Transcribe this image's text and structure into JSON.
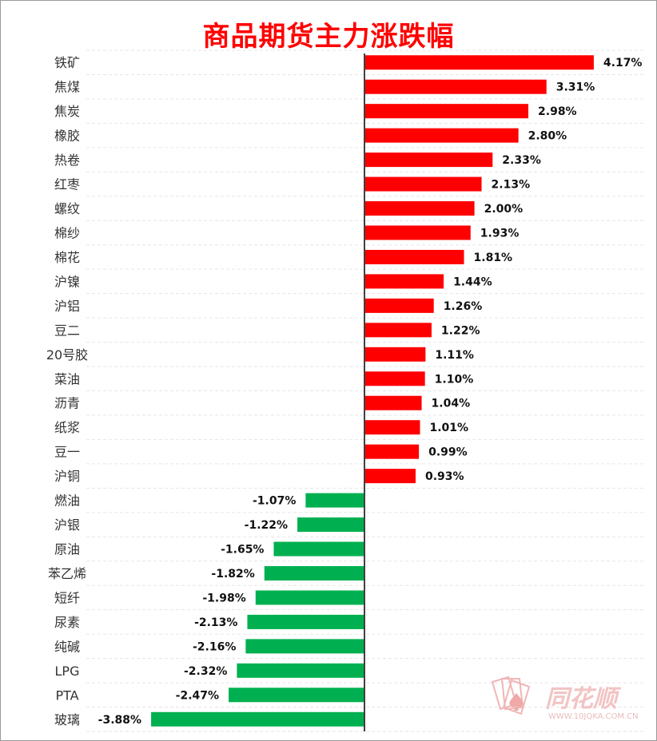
{
  "colors": {
    "positive": "#ff0000",
    "negative": "#00b050",
    "title": "#ff0000",
    "axis": "#404040",
    "grid": "#e6e6e6",
    "watermark": "#f2c4c4"
  },
  "watermark": {
    "brand": "同花顺",
    "url": "WWW.10JQKA.COM.CN",
    "logo_icon": "playing-cards-spade-icon"
  },
  "chart_data": {
    "type": "bar",
    "orientation": "horizontal",
    "title": "商品期货主力涨跌幅",
    "xlim": [
      -4.5,
      5.0
    ],
    "grid": "horizontal",
    "legend": "none",
    "categories": [
      "铁矿",
      "焦煤",
      "焦炭",
      "橡胶",
      "热卷",
      "红枣",
      "螺纹",
      "棉纱",
      "棉花",
      "沪镍",
      "沪铝",
      "豆二",
      "20号胶",
      "菜油",
      "沥青",
      "纸浆",
      "豆一",
      "沪铜",
      "燃油",
      "沪银",
      "原油",
      "苯乙烯",
      "短纤",
      "尿素",
      "纯碱",
      "LPG",
      "PTA",
      "玻璃"
    ],
    "values": [
      4.17,
      3.31,
      2.98,
      2.8,
      2.33,
      2.13,
      2.0,
      1.93,
      1.81,
      1.44,
      1.26,
      1.22,
      1.11,
      1.1,
      1.04,
      1.01,
      0.99,
      0.93,
      -1.07,
      -1.22,
      -1.65,
      -1.82,
      -1.98,
      -2.13,
      -2.16,
      -2.32,
      -2.47,
      -3.88
    ],
    "labels": [
      "4.17%",
      "3.31%",
      "2.98%",
      "2.80%",
      "2.33%",
      "2.13%",
      "2.00%",
      "1.93%",
      "1.81%",
      "1.44%",
      "1.26%",
      "1.22%",
      "1.11%",
      "1.10%",
      "1.04%",
      "1.01%",
      "0.99%",
      "0.93%",
      "-1.07%",
      "-1.22%",
      "-1.65%",
      "-1.82%",
      "-1.98%",
      "-2.13%",
      "-2.16%",
      "-2.32%",
      "-2.47%",
      "-3.88%"
    ]
  }
}
